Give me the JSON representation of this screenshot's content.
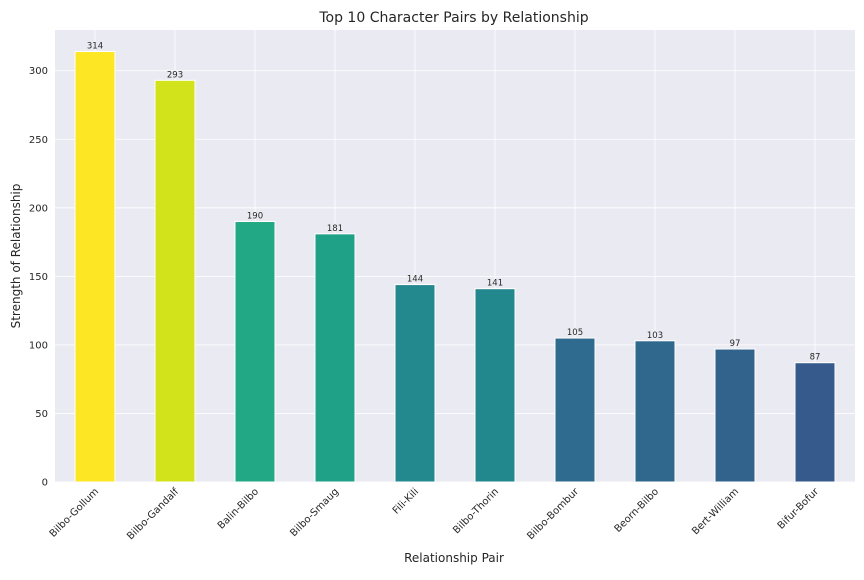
{
  "chart_data": {
    "type": "bar",
    "title": "Top 10 Character Pairs by Relationship",
    "xlabel": "Relationship Pair",
    "ylabel": "Strength of Relationship",
    "categories": [
      "Bilbo-Gollum",
      "Bilbo-Gandalf",
      "Balin-Bilbo",
      "Bilbo-Smaug",
      "Fili-Kili",
      "Bilbo-Thorin",
      "Bilbo-Bombur",
      "Beorn-Bilbo",
      "Bert-William",
      "Bifur-Bofur"
    ],
    "values": [
      314,
      293,
      190,
      181,
      144,
      141,
      105,
      103,
      97,
      87
    ],
    "data_labels": [
      "314",
      "293",
      "190",
      "181",
      "144",
      "141",
      "105",
      "103",
      "97",
      "87"
    ],
    "colors": [
      "#fde725",
      "#d2e21b",
      "#22a884",
      "#1fa187",
      "#23898e",
      "#23878e",
      "#2f6b8e",
      "#30678d",
      "#31638d",
      "#375a8c"
    ],
    "yticks": [
      0,
      50,
      100,
      150,
      200,
      250,
      300
    ],
    "ytick_labels": [
      "0",
      "50",
      "100",
      "150",
      "200",
      "250",
      "300"
    ],
    "ylim": [
      0,
      329.7
    ],
    "grid": true,
    "background": "#eaeaf2",
    "grid_color": "#ffffff"
  }
}
